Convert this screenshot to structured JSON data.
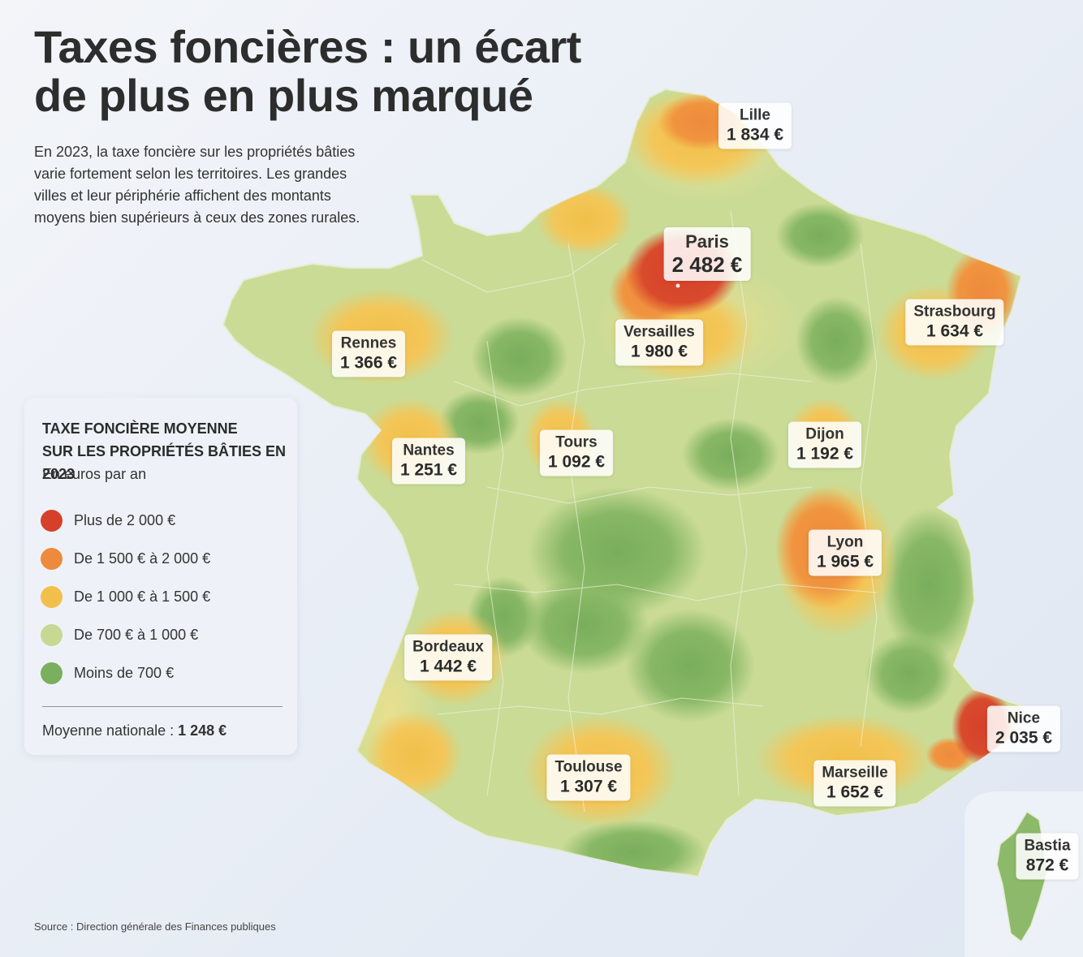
{
  "title": {
    "line1": "Taxes foncières : un écart",
    "line2": "de plus en plus marqué"
  },
  "intro": "En 2023, la taxe foncière sur les propriétés bâties varie fortement selon les territoires. Les grandes villes et leur périphérie affichent des montants moyens bien supérieurs à ceux des zones rurales.",
  "legend": {
    "title_line1": "TAXE FONCIÈRE MOYENNE",
    "title_line2": "SUR LES PROPRIÉTÉS BÂTIES EN 2023",
    "unit": "En euros par an",
    "classes": [
      {
        "label": "Plus de 2 000 €",
        "color": "#d6402b"
      },
      {
        "label": "De 1 500 € à 2 000 €",
        "color": "#ee8a3d"
      },
      {
        "label": "De 1 000 € à 1 500 €",
        "color": "#f2c04a"
      },
      {
        "label": "De 700 € à 1 000 €",
        "color": "#c6d892"
      },
      {
        "label": "Moins de 700 €",
        "color": "#7aaf5e"
      }
    ],
    "average_label": "Moyenne nationale : ",
    "average_value": "1 248 €"
  },
  "cities": [
    {
      "name": "Lille",
      "value": "1 834 €",
      "class": 1
    },
    {
      "name": "Paris",
      "value": "2 482 €",
      "class": 0
    },
    {
      "name": "Versailles",
      "value": "1 980 €",
      "class": 1
    },
    {
      "name": "Strasbourg",
      "value": "1 634 €",
      "class": 1
    },
    {
      "name": "Rennes",
      "value": "1 366 €",
      "class": 2
    },
    {
      "name": "Nantes",
      "value": "1 251 €",
      "class": 2
    },
    {
      "name": "Tours",
      "value": "1 092 €",
      "class": 2
    },
    {
      "name": "Dijon",
      "value": "1 192 €",
      "class": 2
    },
    {
      "name": "Lyon",
      "value": "1 965 €",
      "class": 1
    },
    {
      "name": "Bordeaux",
      "value": "1 442 €",
      "class": 2
    },
    {
      "name": "Toulouse",
      "value": "1 307 €",
      "class": 2
    },
    {
      "name": "Marseille",
      "value": "1 652 €",
      "class": 1
    },
    {
      "name": "Nice",
      "value": "2 035 €",
      "class": 0
    },
    {
      "name": "Bastia",
      "value": "872 €",
      "class": 3
    }
  ],
  "source": "Source : Direction générale des Finances publiques"
}
